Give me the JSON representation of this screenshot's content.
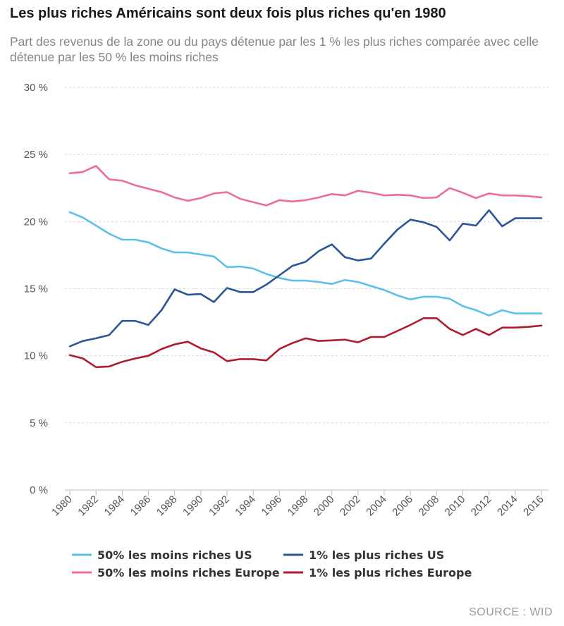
{
  "chart_data": {
    "type": "line",
    "title": "Les plus riches Américains sont deux fois plus riches qu'en 1980",
    "subtitle": "Part des revenus de la zone ou du pays détenue par les 1 % les plus riches comparée avec celle détenue par les 50 % les moins riches",
    "source": "SOURCE : WID",
    "xlabel": "",
    "ylabel": "",
    "ylim": [
      0,
      30
    ],
    "y_ticks": [
      "0 %",
      "5 %",
      "10 %",
      "15 %",
      "20 %",
      "25 %",
      "30 %"
    ],
    "x_ticks": [
      "1980",
      "1982",
      "1984",
      "1986",
      "1988",
      "1990",
      "1992",
      "1994",
      "1996",
      "1998",
      "2000",
      "2002",
      "2004",
      "2006",
      "2008",
      "2010",
      "2012",
      "2014",
      "2016"
    ],
    "grid": "horizontal dashed",
    "legend_position": "bottom",
    "x": [
      1980,
      1981,
      1982,
      1983,
      1984,
      1985,
      1986,
      1987,
      1988,
      1989,
      1990,
      1991,
      1992,
      1993,
      1994,
      1995,
      1996,
      1997,
      1998,
      1999,
      2000,
      2001,
      2002,
      2003,
      2004,
      2005,
      2006,
      2007,
      2008,
      2009,
      2010,
      2011,
      2012,
      2013,
      2014,
      2015,
      2016
    ],
    "series": [
      {
        "name": "50% les moins riches US",
        "color": "#5bc0eb",
        "values": [
          20.7,
          20.3,
          19.7,
          19.1,
          18.65,
          18.65,
          18.45,
          18.0,
          17.7,
          17.7,
          17.55,
          17.4,
          16.6,
          16.65,
          16.5,
          16.1,
          15.8,
          15.6,
          15.6,
          15.5,
          15.35,
          15.65,
          15.5,
          15.2,
          14.9,
          14.5,
          14.2,
          14.4,
          14.4,
          14.25,
          13.7,
          13.4,
          13.0,
          13.4,
          13.15,
          13.15,
          13.15
        ]
      },
      {
        "name": "1% les plus riches US",
        "color": "#2c5596",
        "values": [
          10.7,
          11.1,
          11.3,
          11.55,
          12.6,
          12.6,
          12.3,
          13.4,
          14.95,
          14.55,
          14.6,
          14.0,
          15.05,
          14.75,
          14.75,
          15.3,
          16.0,
          16.7,
          17.0,
          17.8,
          18.3,
          17.35,
          17.1,
          17.25,
          18.35,
          19.4,
          20.15,
          19.95,
          19.6,
          18.6,
          19.85,
          19.7,
          20.85,
          19.65,
          20.25,
          20.25,
          20.25
        ]
      },
      {
        "name": "50% les moins riches Europe",
        "color": "#ee6e92",
        "values": [
          23.6,
          23.7,
          24.15,
          23.15,
          23.05,
          22.7,
          22.45,
          22.2,
          21.8,
          21.55,
          21.75,
          22.1,
          22.2,
          21.7,
          21.45,
          21.2,
          21.6,
          21.5,
          21.6,
          21.8,
          22.05,
          21.95,
          22.3,
          22.15,
          21.95,
          22.0,
          21.95,
          21.75,
          21.8,
          22.5,
          22.15,
          21.75,
          22.1,
          21.95,
          21.95,
          21.9,
          21.8
        ]
      },
      {
        "name": "1% les plus riches Europe",
        "color": "#b01b2b",
        "values": [
          10.05,
          9.8,
          9.15,
          9.2,
          9.55,
          9.8,
          10.0,
          10.5,
          10.85,
          11.05,
          10.55,
          10.25,
          9.6,
          9.75,
          9.75,
          9.65,
          10.5,
          10.95,
          11.3,
          11.1,
          11.15,
          11.2,
          11.0,
          11.4,
          11.4,
          11.85,
          12.3,
          12.8,
          12.8,
          12.0,
          11.55,
          12.0,
          11.55,
          12.1,
          12.1,
          12.15,
          12.25
        ]
      }
    ]
  }
}
